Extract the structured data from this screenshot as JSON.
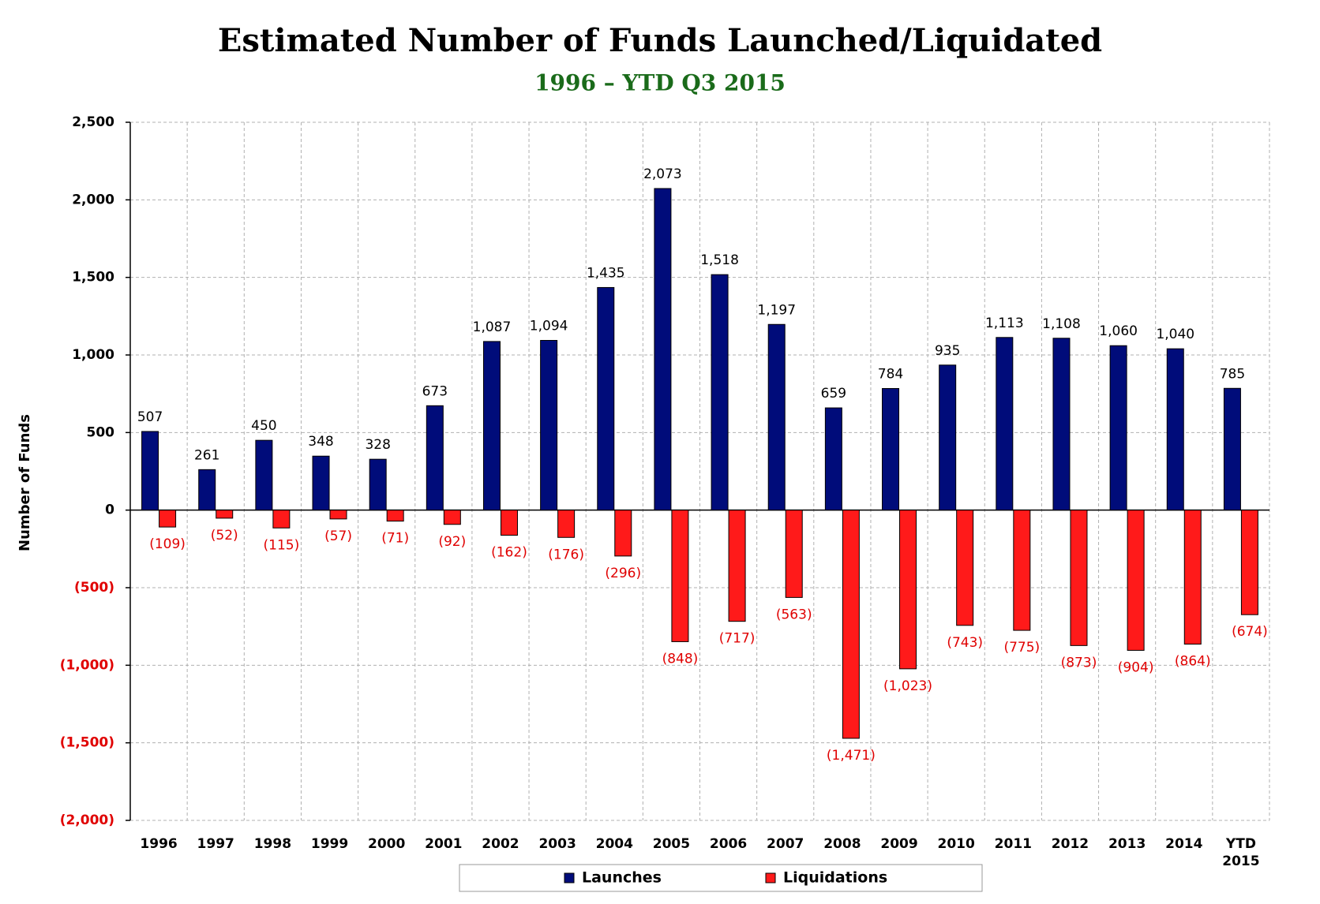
{
  "chart_data": {
    "type": "bar",
    "title": "Estimated Number of Funds Launched/Liquidated",
    "subtitle": "1996 – YTD Q3 2015",
    "y_label": "Number of Funds",
    "categories": [
      "1996",
      "1997",
      "1998",
      "1999",
      "2000",
      "2001",
      "2002",
      "2003",
      "2004",
      "2005",
      "2006",
      "2007",
      "2008",
      "2009",
      "2010",
      "2011",
      "2012",
      "2013",
      "2014",
      "YTD 2015"
    ],
    "series": [
      {
        "name": "Launches",
        "color": "#000c7a",
        "values": [
          507,
          261,
          450,
          348,
          328,
          673,
          1087,
          1094,
          1435,
          2073,
          1518,
          1197,
          659,
          784,
          935,
          1113,
          1108,
          1060,
          1040,
          785
        ],
        "value_labels": [
          "507",
          "261",
          "450",
          "348",
          "328",
          "673",
          "1,087",
          "1,094",
          "1,435",
          "2,073",
          "1,518",
          "1,197",
          "659",
          "784",
          "935",
          "1,113",
          "1,108",
          "1,060",
          "1,040",
          "785"
        ]
      },
      {
        "name": "Liquidations",
        "color": "#ff1a1a",
        "values": [
          -109,
          -52,
          -115,
          -57,
          -71,
          -92,
          -162,
          -176,
          -296,
          -848,
          -717,
          -563,
          -1471,
          -1023,
          -743,
          -775,
          -873,
          -904,
          -864,
          -674
        ],
        "value_labels": [
          "(109)",
          "(52)",
          "(115)",
          "(57)",
          "(71)",
          "(92)",
          "(162)",
          "(176)",
          "(296)",
          "(848)",
          "(717)",
          "(563)",
          "(1,471)",
          "(1,023)",
          "(743)",
          "(775)",
          "(873)",
          "(904)",
          "(864)",
          "(674)"
        ]
      }
    ],
    "ylim": [
      -2000,
      2500
    ],
    "yticks": [
      {
        "value": -2000,
        "label": "(2,000)"
      },
      {
        "value": -1500,
        "label": "(1,500)"
      },
      {
        "value": -1000,
        "label": "(1,000)"
      },
      {
        "value": -500,
        "label": "(500)"
      },
      0,
      500,
      {
        "value": 1000,
        "label": "1,000"
      },
      {
        "value": 1500,
        "label": "1,500"
      },
      {
        "value": 2000,
        "label": "2,000"
      },
      {
        "value": 2500,
        "label": "2,500"
      }
    ],
    "grid": true,
    "legend": "bottom"
  }
}
